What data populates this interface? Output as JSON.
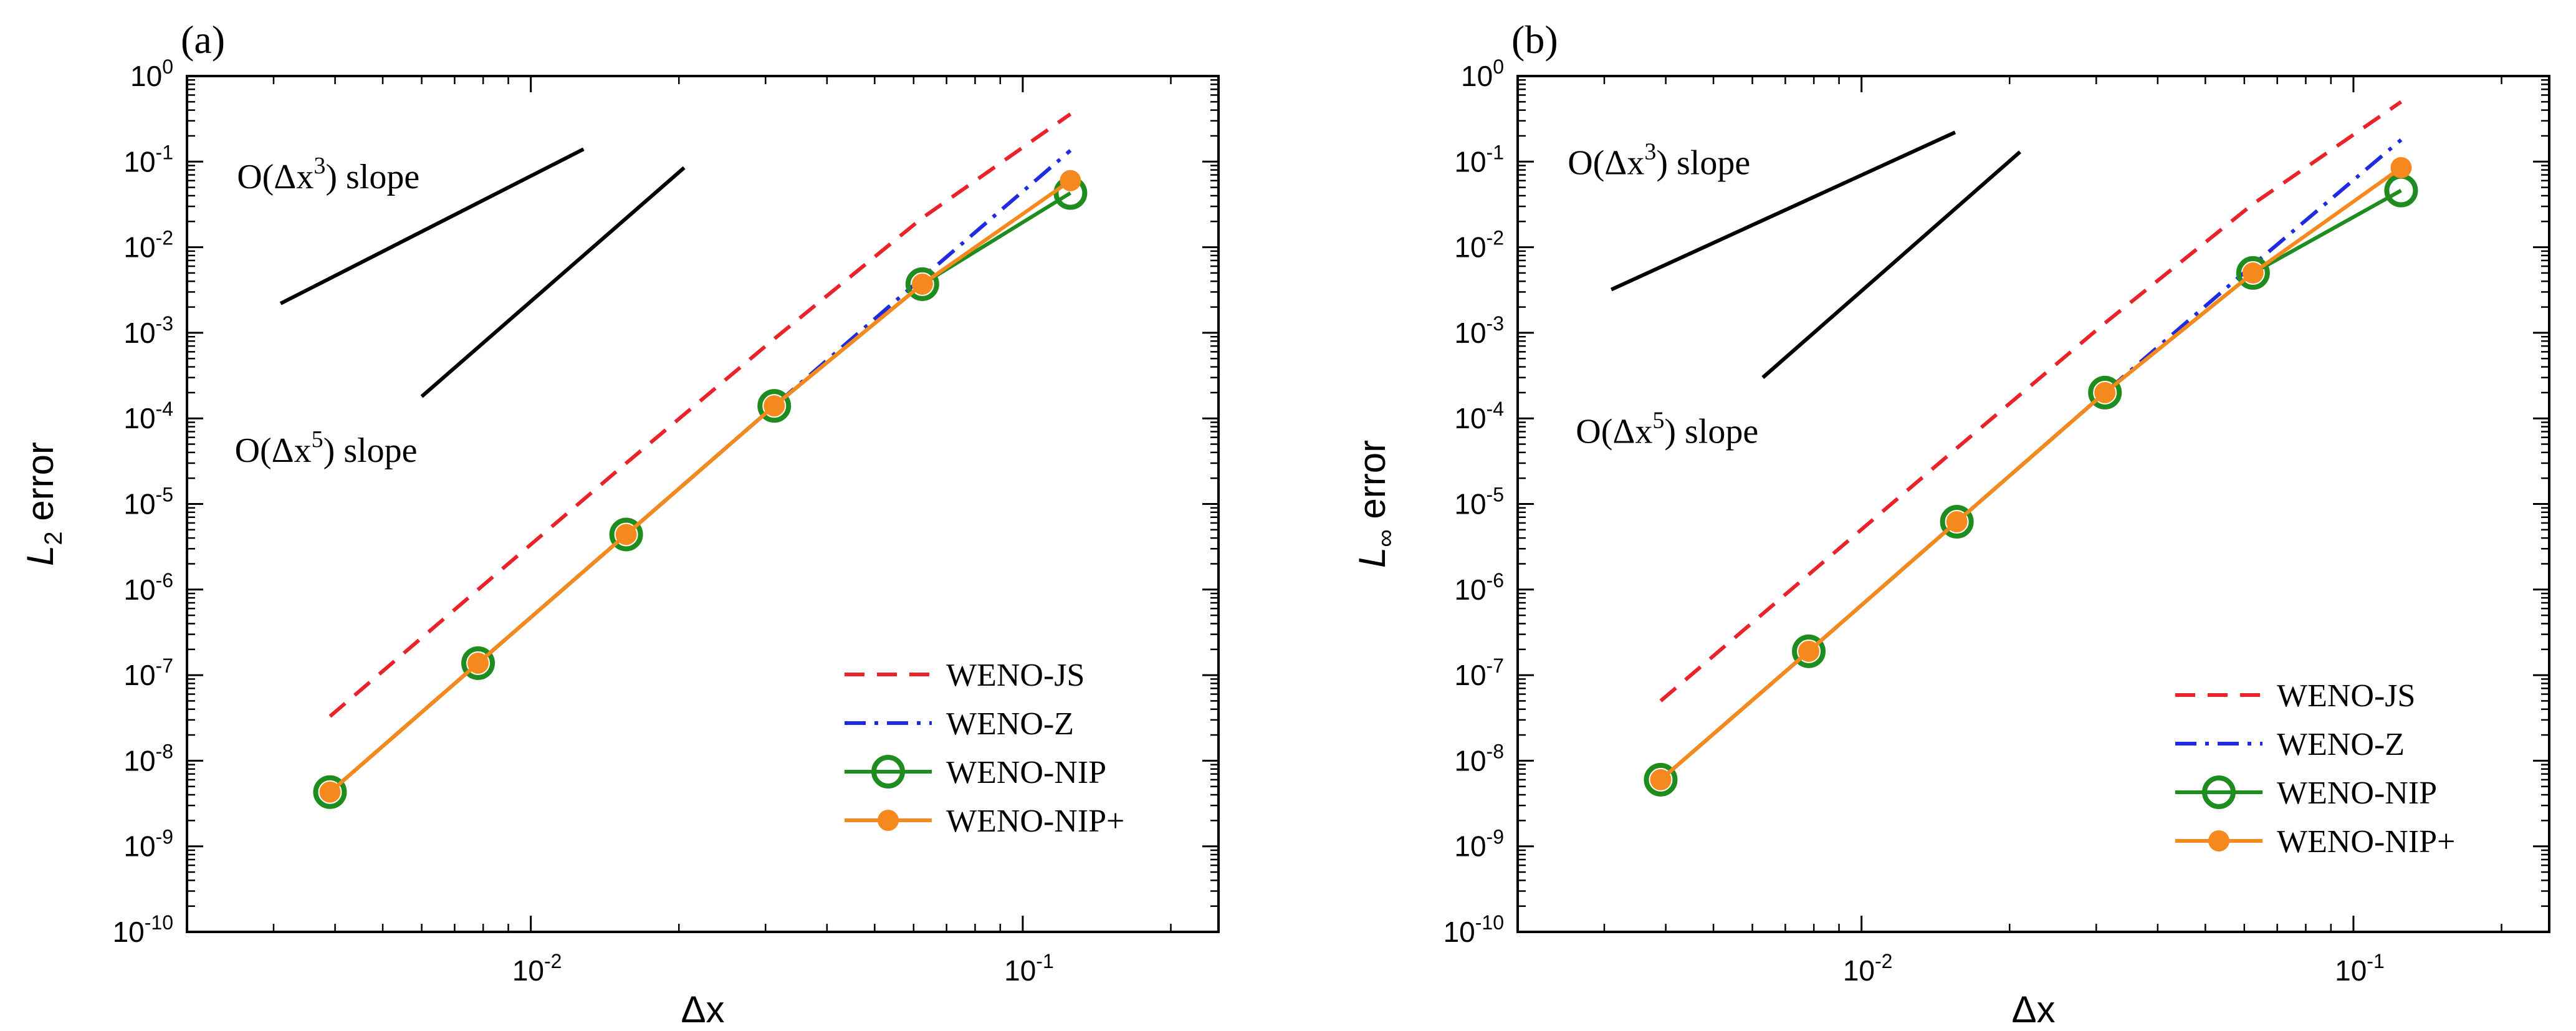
{
  "chart_data": [
    {
      "type": "line",
      "panel_label": "(a)",
      "xlabel": "Δx",
      "ylabel": {
        "base": "L",
        "sub": "2",
        "rest": " error"
      },
      "xscale": "log",
      "yscale": "log",
      "xlim": [
        0.002,
        0.25
      ],
      "ylim": [
        1e-10,
        1
      ],
      "x_ticks": [
        {
          "value": 0.01,
          "base": "10",
          "exp": "-2"
        },
        {
          "value": 0.1,
          "base": "10",
          "exp": "-1"
        }
      ],
      "y_ticks": [
        {
          "value": 1,
          "base": "10",
          "exp": "0"
        },
        {
          "value": 0.1,
          "base": "10",
          "exp": "-1"
        },
        {
          "value": 0.01,
          "base": "10",
          "exp": "-2"
        },
        {
          "value": 0.001,
          "base": "10",
          "exp": "-3"
        },
        {
          "value": 0.0001,
          "base": "10",
          "exp": "-4"
        },
        {
          "value": 1e-05,
          "base": "10",
          "exp": "-5"
        },
        {
          "value": 1e-06,
          "base": "10",
          "exp": "-6"
        },
        {
          "value": 1e-07,
          "base": "10",
          "exp": "-7"
        },
        {
          "value": 1e-08,
          "base": "10",
          "exp": "-8"
        },
        {
          "value": 1e-09,
          "base": "10",
          "exp": "-9"
        },
        {
          "value": 1e-10,
          "base": "10",
          "exp": "-10"
        }
      ],
      "legend_position": "bottom-right",
      "series": [
        {
          "name": "WENO-JS",
          "style": "dashed",
          "color": "#e8242a",
          "x": [
            0.00390625,
            0.0078125,
            0.015625,
            0.03125,
            0.0625,
            0.125
          ],
          "y": [
            3.3e-08,
            1e-06,
            3e-05,
            0.00085,
            0.022,
            0.36
          ]
        },
        {
          "name": "WENO-Z",
          "style": "dashdot",
          "color": "#1f2be0",
          "x": [
            0.00390625,
            0.0078125,
            0.015625,
            0.03125,
            0.0625,
            0.125
          ],
          "y": [
            4.3e-09,
            1.38e-07,
            4.4e-06,
            0.00014,
            0.0044,
            0.135
          ]
        },
        {
          "name": "WENO-NIP",
          "style": "solid-open-circle",
          "color": "#1e8c1e",
          "x": [
            0.00390625,
            0.0078125,
            0.015625,
            0.03125,
            0.0625,
            0.125
          ],
          "y": [
            4.3e-09,
            1.38e-07,
            4.4e-06,
            0.00014,
            0.0037,
            0.043
          ]
        },
        {
          "name": "WENO-NIP+",
          "style": "solid-filled-circle",
          "color": "#f5891e",
          "x": [
            0.00390625,
            0.0078125,
            0.015625,
            0.03125,
            0.0625,
            0.125
          ],
          "y": [
            4.3e-09,
            1.38e-07,
            4.4e-06,
            0.00014,
            0.0037,
            0.06
          ]
        }
      ],
      "reference_lines": [
        {
          "label_prefix": "O(Δx",
          "label_exp": "3",
          "label_suffix": ") slope",
          "x": [
            0.0031,
            0.0128
          ],
          "y": [
            0.0022,
            0.14
          ]
        },
        {
          "label_prefix": "O(Δx",
          "label_exp": "5",
          "label_suffix": ") slope",
          "x": [
            0.006,
            0.0205
          ],
          "y": [
            0.00018,
            0.085
          ]
        }
      ]
    },
    {
      "type": "line",
      "panel_label": "(b)",
      "xlabel": "Δx",
      "ylabel": {
        "base": "L",
        "sub": "∞",
        "rest": " error"
      },
      "xscale": "log",
      "yscale": "log",
      "xlim": [
        0.002,
        0.25
      ],
      "ylim": [
        1e-10,
        1
      ],
      "x_ticks": [
        {
          "value": 0.01,
          "base": "10",
          "exp": "-2"
        },
        {
          "value": 0.1,
          "base": "10",
          "exp": "-1"
        }
      ],
      "y_ticks": [
        {
          "value": 1,
          "base": "10",
          "exp": "0"
        },
        {
          "value": 0.1,
          "base": "10",
          "exp": "-1"
        },
        {
          "value": 0.01,
          "base": "10",
          "exp": "-2"
        },
        {
          "value": 0.001,
          "base": "10",
          "exp": "-3"
        },
        {
          "value": 0.0001,
          "base": "10",
          "exp": "-4"
        },
        {
          "value": 1e-05,
          "base": "10",
          "exp": "-5"
        },
        {
          "value": 1e-06,
          "base": "10",
          "exp": "-6"
        },
        {
          "value": 1e-07,
          "base": "10",
          "exp": "-7"
        },
        {
          "value": 1e-08,
          "base": "10",
          "exp": "-8"
        },
        {
          "value": 1e-09,
          "base": "10",
          "exp": "-9"
        },
        {
          "value": 1e-10,
          "base": "10",
          "exp": "-10"
        }
      ],
      "legend_position": "bottom-right",
      "series": [
        {
          "name": "WENO-JS",
          "style": "dashed",
          "color": "#e8242a",
          "x": [
            0.00390625,
            0.0078125,
            0.015625,
            0.03125,
            0.0625,
            0.125
          ],
          "y": [
            5e-08,
            1.5e-06,
            4.5e-05,
            0.0013,
            0.032,
            0.5
          ]
        },
        {
          "name": "WENO-Z",
          "style": "dashdot",
          "color": "#1f2be0",
          "x": [
            0.00390625,
            0.0078125,
            0.015625,
            0.03125,
            0.0625,
            0.125
          ],
          "y": [
            6e-09,
            1.9e-07,
            6.2e-06,
            0.0002,
            0.0062,
            0.18
          ]
        },
        {
          "name": "WENO-NIP",
          "style": "solid-open-circle",
          "color": "#1e8c1e",
          "x": [
            0.00390625,
            0.0078125,
            0.015625,
            0.03125,
            0.0625,
            0.125
          ],
          "y": [
            6e-09,
            1.9e-07,
            6.2e-06,
            0.0002,
            0.005,
            0.046
          ]
        },
        {
          "name": "WENO-NIP+",
          "style": "solid-filled-circle",
          "color": "#f5891e",
          "x": [
            0.00390625,
            0.0078125,
            0.015625,
            0.03125,
            0.0625,
            0.125
          ],
          "y": [
            6e-09,
            1.9e-07,
            6.2e-06,
            0.0002,
            0.005,
            0.085
          ]
        }
      ],
      "reference_lines": [
        {
          "label_prefix": "O(Δx",
          "label_exp": "3",
          "label_suffix": ") slope",
          "x": [
            0.0031,
            0.0155
          ],
          "y": [
            0.0032,
            0.22
          ]
        },
        {
          "label_prefix": "O(Δx",
          "label_exp": "5",
          "label_suffix": ") slope",
          "x": [
            0.0063,
            0.021
          ],
          "y": [
            0.0003,
            0.13
          ]
        }
      ]
    }
  ]
}
